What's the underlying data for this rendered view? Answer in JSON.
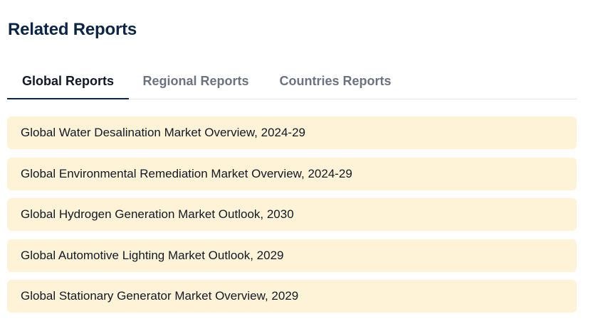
{
  "section": {
    "title": "Related Reports"
  },
  "tabs": [
    {
      "label": "Global Reports",
      "active": true
    },
    {
      "label": "Regional Reports",
      "active": false
    },
    {
      "label": "Countries Reports",
      "active": false
    }
  ],
  "reports": [
    {
      "label": "Global Water Desalination Market Overview, 2024-29"
    },
    {
      "label": "Global Environmental Remediation Market Overview, 2024-29"
    },
    {
      "label": "Global Hydrogen Generation Market Outlook, 2030"
    },
    {
      "label": "Global Automotive Lighting Market Outlook, 2029"
    },
    {
      "label": "Global Stationary Generator Market Overview, 2029"
    }
  ],
  "colors": {
    "title": "#0b2545",
    "active_tab": "#111827",
    "inactive_tab": "#6b7280",
    "active_underline": "#0b2545",
    "item_background": "#fef3d6"
  }
}
